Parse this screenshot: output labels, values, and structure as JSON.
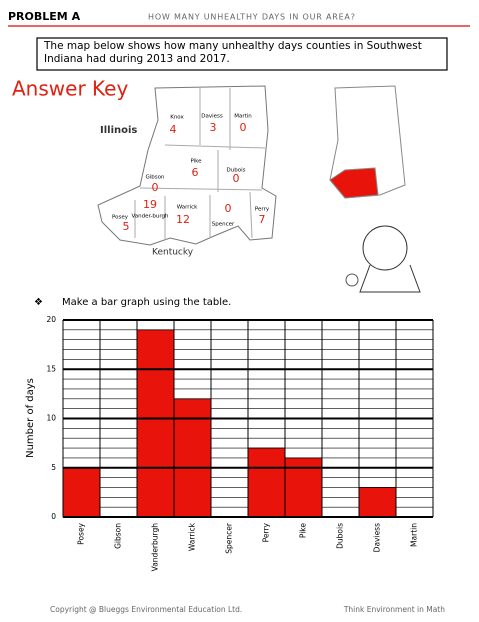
{
  "header": {
    "label": "PROBLEM A",
    "title": "HOW MANY UNHEALTHY DAYS IN OUR AREA?"
  },
  "intro": "The map below shows how many unhealthy days counties in Southwest Indiana had during 2013 and 2017.",
  "answer_key": "Answer Key",
  "map": {
    "states": [
      "Illinois",
      "Kentucky"
    ],
    "counties": [
      {
        "name": "Knox",
        "value": 4
      },
      {
        "name": "Daviess",
        "value": 3
      },
      {
        "name": "Martin",
        "value": 0
      },
      {
        "name": "Pike",
        "value": 6
      },
      {
        "name": "Dubois",
        "value": 0
      },
      {
        "name": "Gibson",
        "value": 0
      },
      {
        "name": "Posey",
        "value": 5
      },
      {
        "name": "Vander-burgh",
        "value": 19
      },
      {
        "name": "Warrick",
        "value": 12
      },
      {
        "name": "Spencer",
        "value": 0
      },
      {
        "name": "Perry",
        "value": 7
      }
    ]
  },
  "instruction": "Make a bar graph using the table.",
  "chart_data": {
    "type": "bar",
    "y_label": "Number of days",
    "categories": [
      "Posey",
      "Gibson",
      "Vanderburgh",
      "Warrick",
      "Spencer",
      "Perry",
      "Pike",
      "Dubois",
      "Daviess",
      "Martin"
    ],
    "values": [
      5,
      0,
      19,
      12,
      0,
      7,
      6,
      0,
      3,
      0
    ],
    "color": "#e8140c",
    "ylim": [
      0,
      20
    ],
    "yticks": [
      0,
      5,
      10,
      15,
      20
    ],
    "grid": true
  },
  "footer": {
    "left": "Copyright @ Blueggs Environmental Education Ltd.",
    "right": "Think Environment in Math"
  }
}
